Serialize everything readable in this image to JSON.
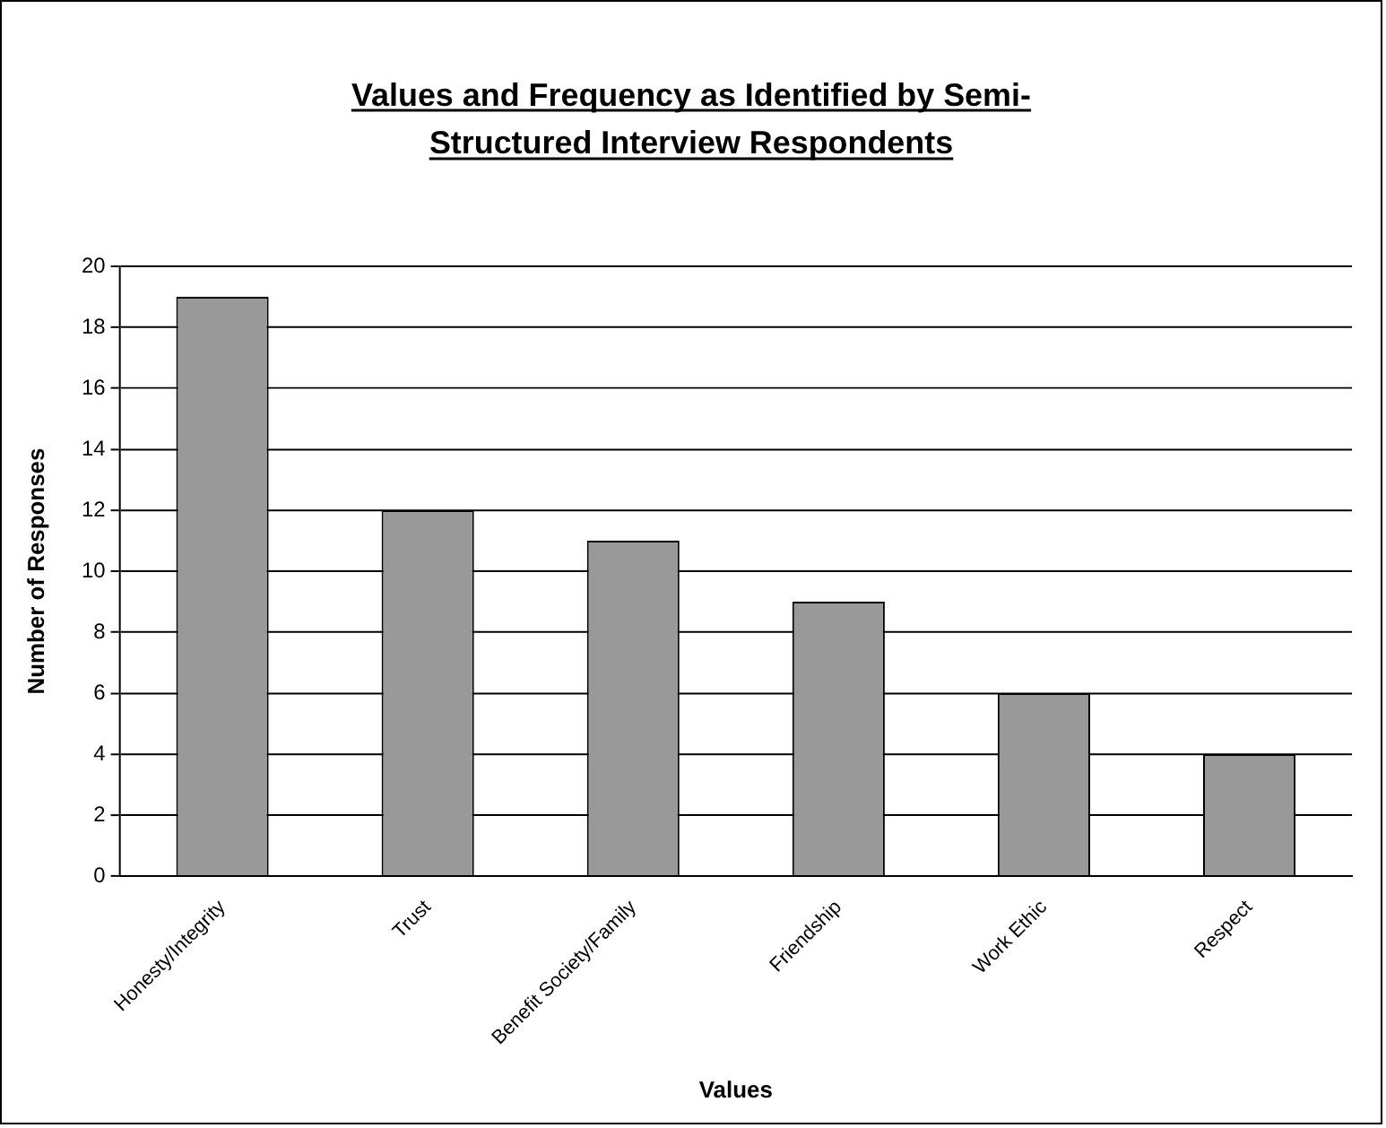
{
  "chart_data": {
    "type": "bar",
    "title": "Values and Frequency as Identified by Semi-Structured Interview Respondents",
    "xlabel": "Values",
    "ylabel": "Number of Responses",
    "categories": [
      "Honesty/Integrity",
      "Trust",
      "Benefit Society/Family",
      "Friendship",
      "Work Ethic",
      "Respect"
    ],
    "values": [
      19,
      12,
      11,
      9,
      6,
      4
    ],
    "color": "#999999",
    "ylim": [
      0,
      20
    ],
    "yticks": [
      0,
      2,
      4,
      6,
      8,
      10,
      12,
      14,
      16,
      18,
      20
    ],
    "grid": "y",
    "legend": false
  }
}
